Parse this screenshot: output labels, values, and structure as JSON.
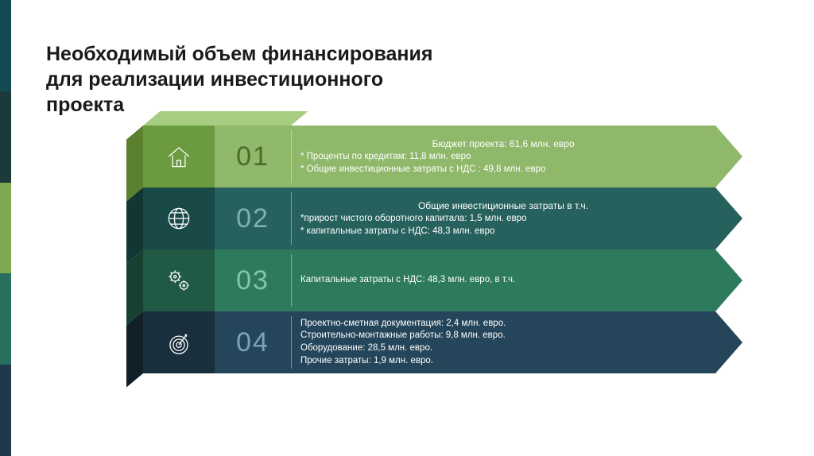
{
  "title": "Необходимый объем финансирования для реализации инвестиционного проекта",
  "sidebar_colors": [
    "#144a52",
    "#1b3a3a",
    "#7fa84f",
    "#2a6e5e",
    "#20384a"
  ],
  "rows": [
    {
      "number": "01",
      "icon": "house",
      "colors": {
        "icon_bg": "#6c9a3f",
        "num_bg": "#8fb86a",
        "num_text": "#4a6b2c",
        "content_bg": "#8fb86a",
        "top_face": "#a6cd82",
        "side_face": "#5a8030",
        "arrow": "#8fb86a"
      },
      "header": "Бюджет проекта: 61,6 млн. евро",
      "lines": [
        "* Проценты по кредитам: 11,8 млн. евро",
        "* Общие инвестиционные затраты с НДС : 49,8 млн. евро"
      ]
    },
    {
      "number": "02",
      "icon": "globe",
      "colors": {
        "icon_bg": "#1a4a48",
        "num_bg": "#26615e",
        "num_text": "#7fb0ab",
        "content_bg": "#26615e",
        "top_face": "#3a7a76",
        "side_face": "#123634",
        "arrow": "#26615e"
      },
      "header": "Общие инвестиционные затраты в т.ч.",
      "lines": [
        "*прирост чистого оборотного капитала: 1,5 млн. евро",
        "* капитальные затраты с НДС: 48,3 млн. евро"
      ]
    },
    {
      "number": "03",
      "icon": "gears",
      "colors": {
        "icon_bg": "#205a44",
        "num_bg": "#2d7a5d",
        "num_text": "#86c4a8",
        "content_bg": "#2d7a5d",
        "top_face": "#3f967a",
        "side_face": "#164030",
        "arrow": "#2d7a5d"
      },
      "header": "",
      "lines": [
        "Капитальные затраты с НДС: 48,3 млн. евро, в т.ч."
      ]
    },
    {
      "number": "04",
      "icon": "target",
      "colors": {
        "icon_bg": "#1a2f3d",
        "num_bg": "#24455a",
        "num_text": "#7aa4bd",
        "content_bg": "#24455a",
        "top_face": "#345d77",
        "side_face": "#111f29",
        "arrow": "#24455a"
      },
      "header": "",
      "lines": [
        "Проектно-сметная документация: 2,4 млн. евро.",
        "Строительно-монтажные работы: 9,8 млн. евро.",
        "Оборудование: 28,5 млн. евро.",
        "Прочие затраты: 1,9 млн. евро."
      ]
    }
  ]
}
